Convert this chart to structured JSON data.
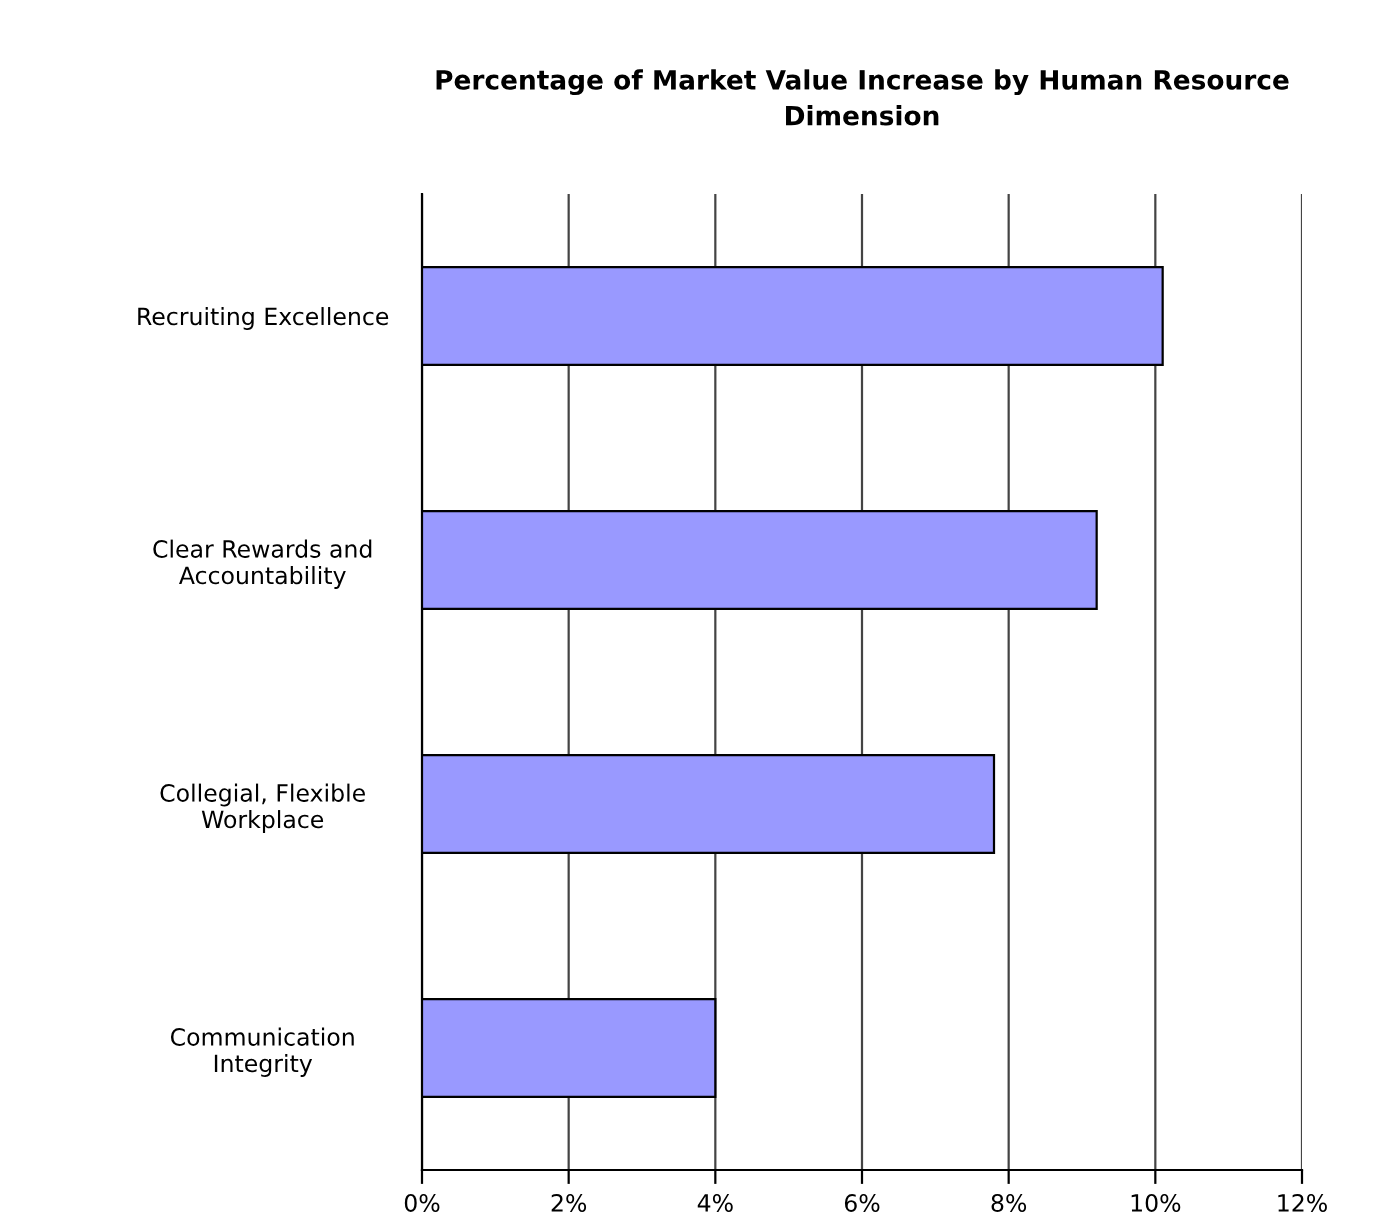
{
  "chart_data": {
    "type": "bar",
    "orientation": "horizontal",
    "title": "Percentage of Market Value Increase by Human Resource\nDimension",
    "categories": [
      "Recruiting Excellence",
      "Clear Rewards and\nAccountability",
      "Collegial, Flexible\nWorkplace",
      "Communication\nIntegrity"
    ],
    "values": [
      10.1,
      9.2,
      7.8,
      4.0
    ],
    "color": "#9999ff",
    "xlim": [
      0,
      12
    ],
    "xticks": [
      {
        "value": 0,
        "label": "0%"
      },
      {
        "value": 2,
        "label": "2%"
      },
      {
        "value": 4,
        "label": "4%"
      },
      {
        "value": 6,
        "label": "6%"
      },
      {
        "value": 8,
        "label": "8%"
      },
      {
        "value": 10,
        "label": "10%"
      },
      {
        "value": 12,
        "label": "12%"
      }
    ],
    "grid": "x",
    "legend": false
  }
}
